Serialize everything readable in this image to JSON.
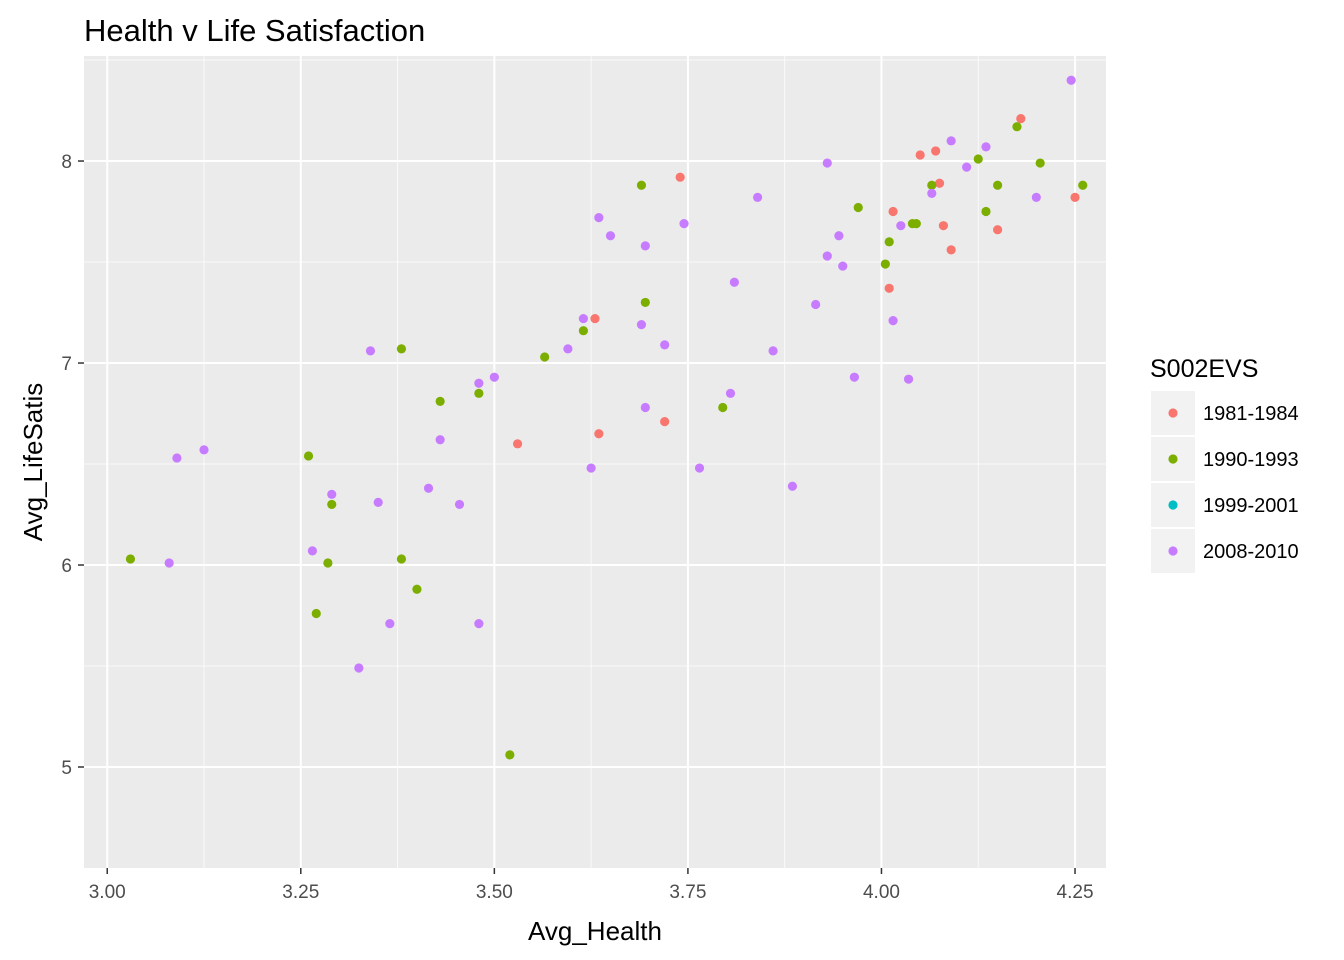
{
  "chart_data": {
    "type": "scatter",
    "title": "Health v Life Satisfaction",
    "xlabel": "Avg_Health",
    "ylabel": "Avg_LifeSatis",
    "xlim": [
      2.97,
      4.29
    ],
    "ylim": [
      4.5,
      8.52
    ],
    "x_ticks": [
      3.0,
      3.25,
      3.5,
      3.75,
      4.0,
      4.25
    ],
    "x_tick_labels": [
      "3.00",
      "3.25",
      "3.50",
      "3.75",
      "4.00",
      "4.25"
    ],
    "y_ticks": [
      5,
      6,
      7,
      8
    ],
    "y_tick_labels": [
      "5",
      "6",
      "7",
      "8"
    ],
    "grid": true,
    "legend": {
      "title": "S002EVS",
      "position": "right",
      "entries": [
        "1981-1984",
        "1990-1993",
        "1999-2001",
        "2008-2010"
      ]
    },
    "series": [
      {
        "name": "1981-1984",
        "color": "#F8766D",
        "points": [
          [
            3.74,
            7.92
          ],
          [
            3.63,
            7.22
          ],
          [
            3.635,
            6.65
          ],
          [
            3.53,
            6.6
          ],
          [
            3.72,
            6.71
          ],
          [
            4.05,
            8.03
          ],
          [
            4.07,
            8.05
          ],
          [
            4.18,
            8.21
          ],
          [
            4.015,
            7.75
          ],
          [
            4.075,
            7.89
          ],
          [
            4.08,
            7.68
          ],
          [
            4.09,
            7.56
          ],
          [
            4.15,
            7.66
          ],
          [
            4.25,
            7.82
          ],
          [
            4.01,
            7.37
          ]
        ]
      },
      {
        "name": "1990-1993",
        "color": "#7CAE00",
        "points": [
          [
            3.03,
            6.03
          ],
          [
            3.26,
            6.54
          ],
          [
            3.27,
            5.76
          ],
          [
            3.285,
            6.01
          ],
          [
            3.29,
            6.3
          ],
          [
            3.38,
            7.07
          ],
          [
            3.38,
            6.03
          ],
          [
            3.4,
            5.88
          ],
          [
            3.43,
            6.81
          ],
          [
            3.48,
            6.85
          ],
          [
            3.52,
            5.06
          ],
          [
            3.565,
            7.03
          ],
          [
            3.615,
            7.16
          ],
          [
            3.69,
            7.88
          ],
          [
            3.695,
            7.3
          ],
          [
            3.795,
            6.78
          ],
          [
            3.97,
            7.77
          ],
          [
            4.005,
            7.49
          ],
          [
            4.01,
            7.6
          ],
          [
            4.04,
            7.69
          ],
          [
            4.045,
            7.69
          ],
          [
            4.065,
            7.88
          ],
          [
            4.125,
            8.01
          ],
          [
            4.135,
            7.75
          ],
          [
            4.15,
            7.88
          ],
          [
            4.175,
            8.17
          ],
          [
            4.205,
            7.99
          ],
          [
            4.26,
            7.88
          ]
        ]
      },
      {
        "name": "1999-2001",
        "color": "#00BFC4",
        "points": []
      },
      {
        "name": "2008-2010",
        "color": "#C77CFF",
        "points": [
          [
            3.08,
            6.01
          ],
          [
            3.09,
            6.53
          ],
          [
            3.125,
            6.57
          ],
          [
            3.265,
            6.07
          ],
          [
            3.29,
            6.35
          ],
          [
            3.325,
            5.49
          ],
          [
            3.34,
            7.06
          ],
          [
            3.35,
            6.31
          ],
          [
            3.365,
            5.71
          ],
          [
            3.415,
            6.38
          ],
          [
            3.43,
            6.62
          ],
          [
            3.455,
            6.3
          ],
          [
            3.48,
            6.9
          ],
          [
            3.48,
            5.71
          ],
          [
            3.5,
            6.93
          ],
          [
            3.595,
            7.07
          ],
          [
            3.615,
            7.22
          ],
          [
            3.625,
            6.48
          ],
          [
            3.635,
            7.72
          ],
          [
            3.65,
            7.63
          ],
          [
            3.69,
            7.19
          ],
          [
            3.695,
            7.58
          ],
          [
            3.695,
            6.78
          ],
          [
            3.72,
            7.09
          ],
          [
            3.745,
            7.69
          ],
          [
            3.765,
            6.48
          ],
          [
            3.805,
            6.85
          ],
          [
            3.81,
            7.4
          ],
          [
            3.84,
            7.82
          ],
          [
            3.86,
            7.06
          ],
          [
            3.885,
            6.39
          ],
          [
            3.915,
            7.29
          ],
          [
            3.93,
            7.99
          ],
          [
            3.93,
            7.53
          ],
          [
            3.945,
            7.63
          ],
          [
            3.95,
            7.48
          ],
          [
            3.965,
            6.93
          ],
          [
            4.015,
            7.21
          ],
          [
            4.025,
            7.68
          ],
          [
            4.035,
            6.92
          ],
          [
            4.065,
            7.84
          ],
          [
            4.09,
            8.1
          ],
          [
            4.11,
            7.97
          ],
          [
            4.135,
            8.07
          ],
          [
            4.2,
            7.82
          ],
          [
            4.245,
            8.4
          ]
        ]
      }
    ]
  }
}
